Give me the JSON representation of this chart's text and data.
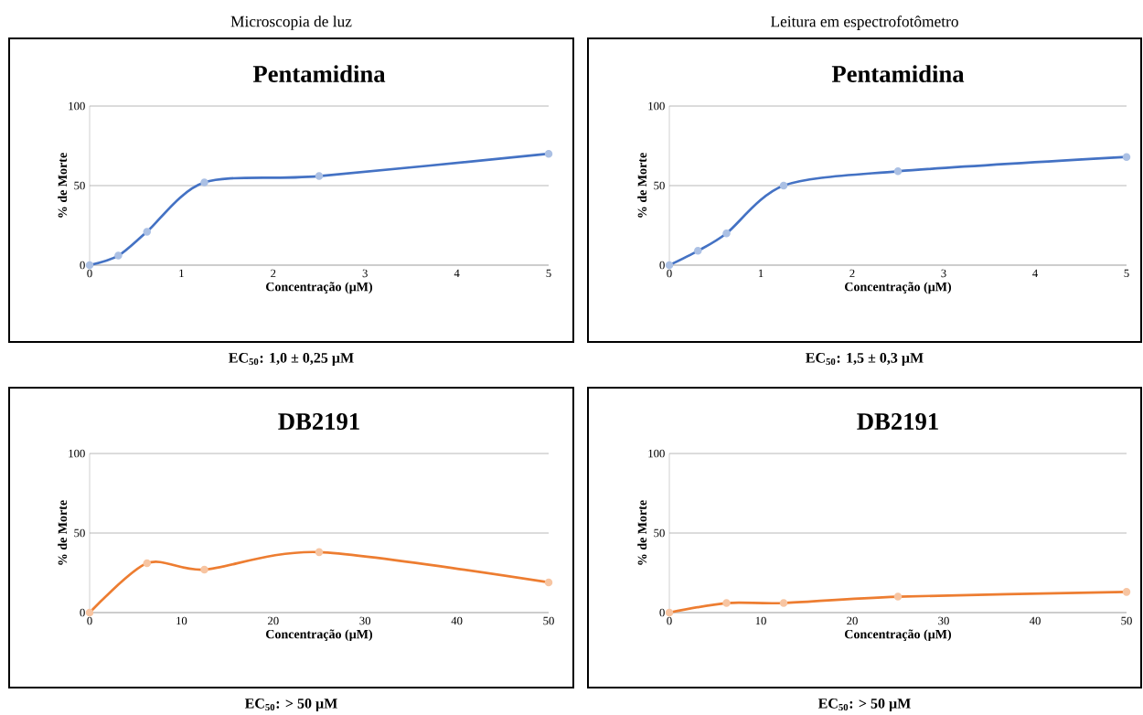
{
  "chart_data": [
    {
      "type": "line",
      "subtitle": "Microscopia de luz",
      "title": "Pentamidina",
      "xlabel": "Concentração (µM)",
      "ylabel": "% de Morte",
      "x": [
        0,
        0.3125,
        0.625,
        1.25,
        2.5,
        5
      ],
      "series": [
        {
          "color": "#4472c4",
          "values": [
            0,
            6,
            21,
            52,
            56,
            70
          ]
        }
      ],
      "xlim": [
        0,
        5
      ],
      "xticks": [
        0,
        1,
        2,
        3,
        4,
        5
      ],
      "ylim": [
        0,
        100
      ],
      "yticks": [
        0,
        50,
        100
      ],
      "grid": "y",
      "marker": "circle",
      "annotations": [
        "EC$_{50}$: 1,0 ± 0,25 µM"
      ]
    },
    {
      "type": "line",
      "subtitle": "Leitura em espectrofotômetro",
      "title": "Pentamidina",
      "xlabel": "Concentração (µM)",
      "ylabel": "% de Morte",
      "x": [
        0,
        0.3125,
        0.625,
        1.25,
        2.5,
        5
      ],
      "series": [
        {
          "color": "#4472c4",
          "values": [
            0,
            9,
            20,
            50,
            59,
            68
          ]
        }
      ],
      "xlim": [
        0,
        5
      ],
      "xticks": [
        0,
        1,
        2,
        3,
        4,
        5
      ],
      "ylim": [
        0,
        100
      ],
      "yticks": [
        0,
        50,
        100
      ],
      "grid": "y",
      "marker": "circle",
      "annotations": [
        "EC$_{50}$: 1,5 ± 0,3 µM"
      ]
    },
    {
      "type": "line",
      "title": "DB2191",
      "xlabel": "Concentração (µM)",
      "ylabel": "% de Morte",
      "x": [
        0,
        6.25,
        12.5,
        25,
        50
      ],
      "series": [
        {
          "color": "#ed7d31",
          "values": [
            0,
            31,
            27,
            38,
            19
          ]
        }
      ],
      "xlim": [
        0,
        50
      ],
      "xticks": [
        0,
        10,
        20,
        30,
        40,
        50
      ],
      "ylim": [
        0,
        100
      ],
      "yticks": [
        0,
        50,
        100
      ],
      "grid": "y",
      "marker": "circle",
      "annotations": [
        "EC$_{50}$: > 50 µM"
      ]
    },
    {
      "type": "line",
      "title": "DB2191",
      "xlabel": "Concentração (µM)",
      "ylabel": "% de Morte",
      "x": [
        0,
        6.25,
        12.5,
        25,
        50
      ],
      "series": [
        {
          "color": "#ed7d31",
          "values": [
            0,
            6,
            6,
            10,
            13
          ]
        }
      ],
      "xlim": [
        0,
        50
      ],
      "xticks": [
        0,
        10,
        20,
        30,
        40,
        50
      ],
      "ylim": [
        0,
        100
      ],
      "yticks": [
        0,
        50,
        100
      ],
      "grid": "y",
      "marker": "circle",
      "annotations": [
        "EC$_{50}$: > 50 µM"
      ]
    }
  ]
}
